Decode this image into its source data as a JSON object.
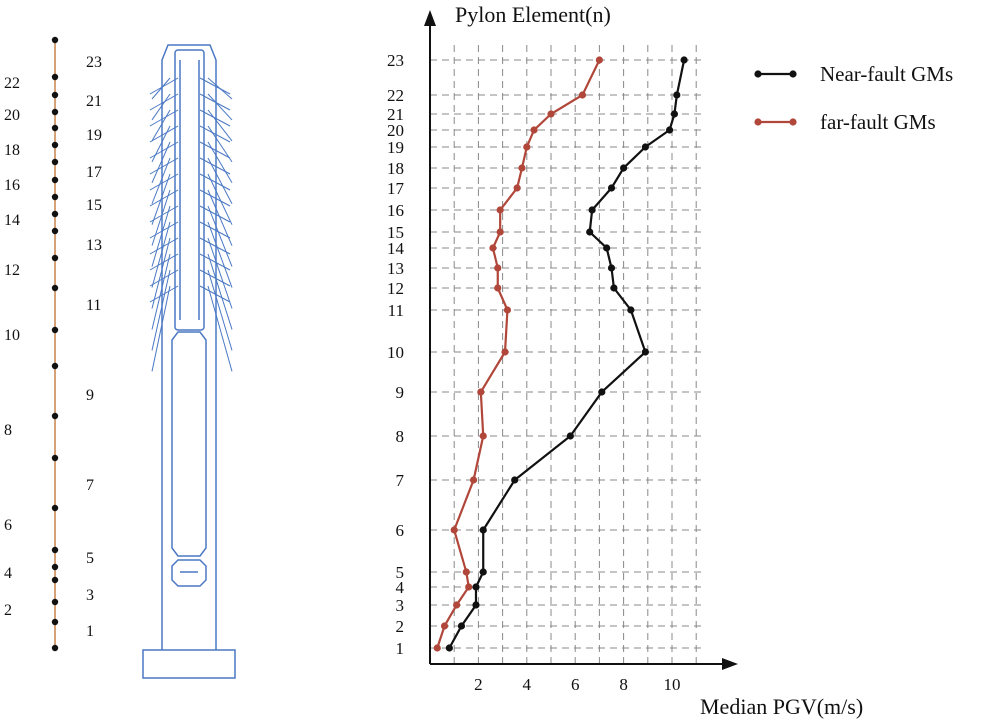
{
  "chart_data": {
    "type": "line",
    "ylabel": "Pylon Element(n)",
    "xlabel": "Median PGV(m/s)",
    "x_ticks": [
      "2",
      "4",
      "6",
      "8",
      "10"
    ],
    "xlim": [
      0,
      12
    ],
    "y_ticks": [
      "1",
      "2",
      "3",
      "4",
      "5",
      "6",
      "7",
      "8",
      "9",
      "10",
      "11",
      "12",
      "13",
      "14",
      "15",
      "16",
      "17",
      "18",
      "19",
      "20",
      "21",
      "22",
      "23"
    ],
    "grid": true,
    "grid_style": "dashed",
    "legend_position": "top-right",
    "series": [
      {
        "name": "Near-fault GMs",
        "color": "#111111",
        "points": [
          [
            0.8,
            1
          ],
          [
            1.3,
            2
          ],
          [
            1.9,
            3
          ],
          [
            1.9,
            4
          ],
          [
            2.2,
            5
          ],
          [
            2.2,
            6
          ],
          [
            3.5,
            7
          ],
          [
            5.8,
            8
          ],
          [
            7.1,
            9
          ],
          [
            8.9,
            10
          ],
          [
            8.3,
            11
          ],
          [
            7.6,
            12
          ],
          [
            7.5,
            13
          ],
          [
            7.3,
            14
          ],
          [
            6.6,
            15
          ],
          [
            6.7,
            16
          ],
          [
            7.5,
            17
          ],
          [
            8.0,
            18
          ],
          [
            8.9,
            19
          ],
          [
            9.9,
            20
          ],
          [
            10.1,
            21
          ],
          [
            10.2,
            22
          ],
          [
            10.5,
            23
          ]
        ]
      },
      {
        "name": "far-fault GMs",
        "color": "#b0473a",
        "points": [
          [
            0.3,
            1
          ],
          [
            0.6,
            2
          ],
          [
            1.1,
            3
          ],
          [
            1.6,
            4
          ],
          [
            1.5,
            5
          ],
          [
            1.0,
            6
          ],
          [
            1.8,
            7
          ],
          [
            2.2,
            8
          ],
          [
            2.1,
            9
          ],
          [
            3.1,
            10
          ],
          [
            3.2,
            11
          ],
          [
            2.8,
            12
          ],
          [
            2.8,
            13
          ],
          [
            2.6,
            14
          ],
          [
            2.9,
            15
          ],
          [
            2.9,
            16
          ],
          [
            3.6,
            17
          ],
          [
            3.8,
            18
          ],
          [
            4.0,
            19
          ],
          [
            4.3,
            20
          ],
          [
            5.0,
            21
          ],
          [
            6.3,
            22
          ],
          [
            7.0,
            23
          ]
        ]
      }
    ]
  },
  "pylon_diagram": {
    "left_node_labels": [
      "22",
      "20",
      "18",
      "16",
      "14",
      "12",
      "10",
      "8",
      "6",
      "4",
      "2"
    ],
    "right_node_labels": [
      "23",
      "21",
      "19",
      "17",
      "15",
      "13",
      "11",
      "9",
      "7",
      "5",
      "3",
      "1"
    ],
    "line_color": "#c8844a",
    "tower_color": "#4a78c4"
  }
}
